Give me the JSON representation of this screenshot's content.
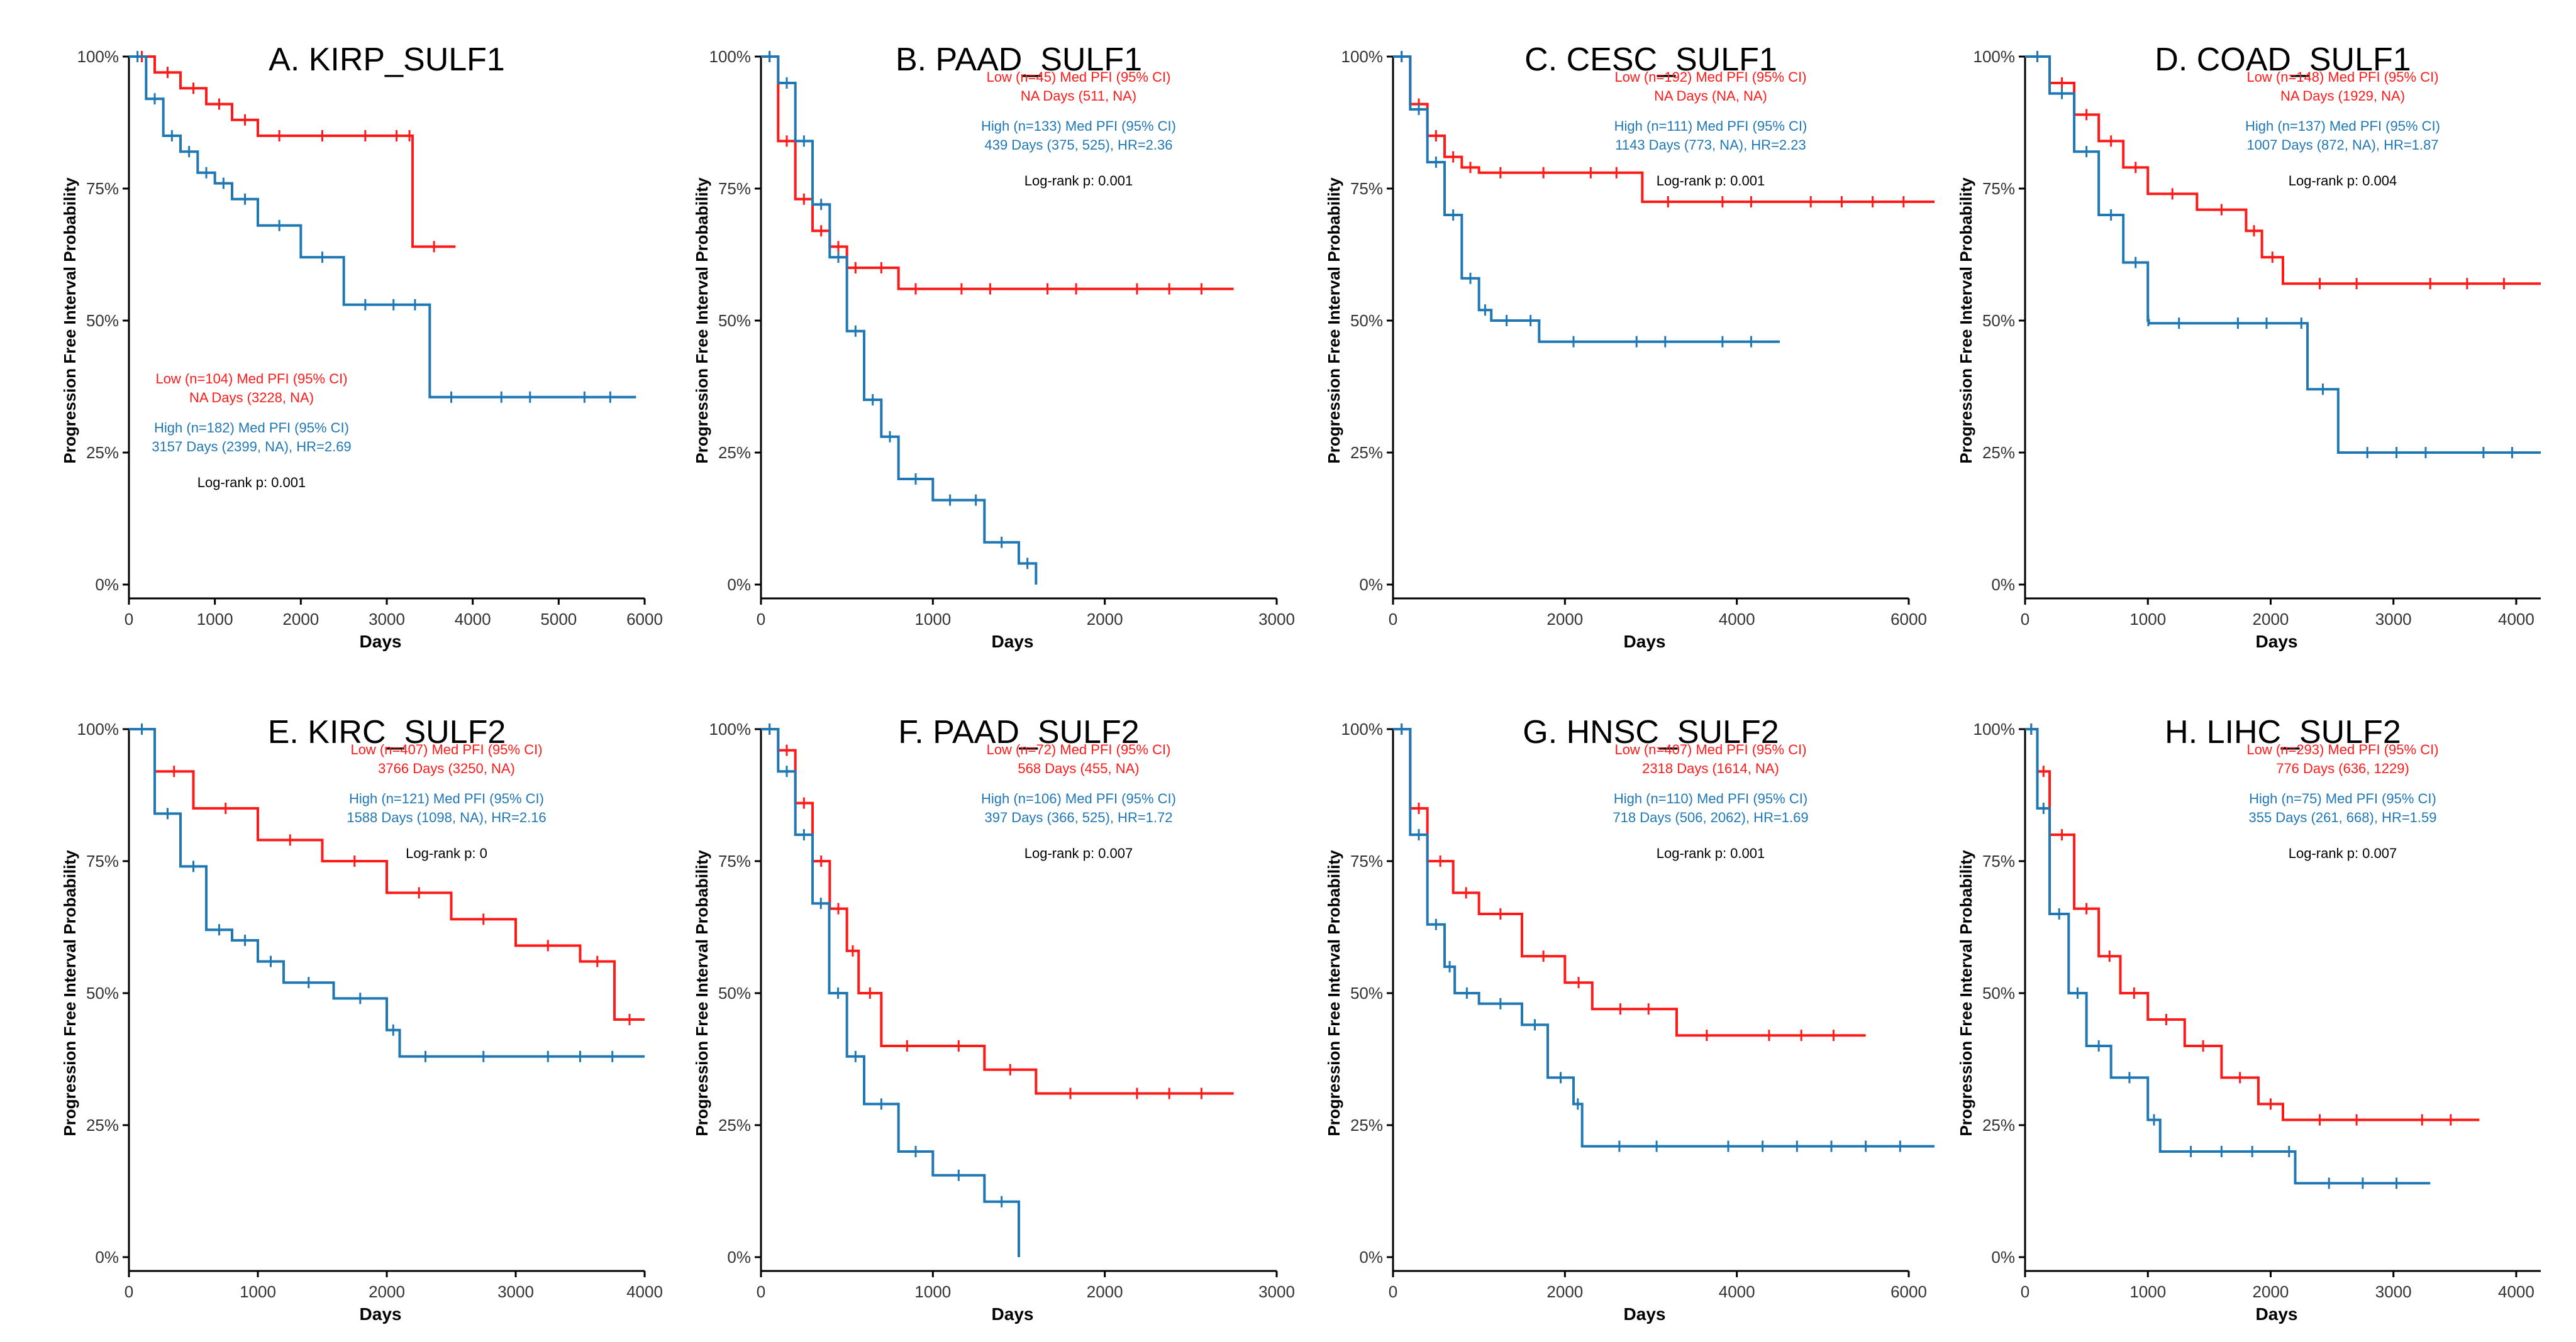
{
  "figure": {
    "colors": {
      "low": "#ff1a1a",
      "high": "#1f78b4",
      "axis": "#000000",
      "text": "#000000"
    },
    "axis_labels": {
      "x": "Days",
      "y": "Progression Free Interval Probability"
    },
    "y_ticks": [
      "0%",
      "25%",
      "50%",
      "75%",
      "100%"
    ]
  },
  "chart_data": [
    {
      "type": "line",
      "title": "A. KIRP_SULF1",
      "xlabel": "Days",
      "ylabel": "Progression Free Interval Probability",
      "xlim": [
        0,
        6000
      ],
      "ylim": [
        0,
        1
      ],
      "x_ticks": [
        0,
        1000,
        2000,
        3000,
        4000,
        5000,
        6000
      ],
      "low_label": "Low (n=104) Med PFI (95% CI)",
      "low_days": "NA Days (3228, NA)",
      "high_label": "High (n=182) Med PFI (95% CI)",
      "high_days": "3157 Days (2399, NA), HR=2.69",
      "logrank": "Log-rank p: 0.001",
      "series": [
        {
          "name": "Low",
          "x": [
            0,
            300,
            600,
            900,
            1200,
            1500,
            2000,
            2500,
            3000,
            3228,
            3300,
            3800
          ],
          "values": [
            1.0,
            0.97,
            0.94,
            0.91,
            0.88,
            0.85,
            0.85,
            0.85,
            0.85,
            0.85,
            0.64,
            0.64
          ]
        },
        {
          "name": "High",
          "x": [
            0,
            200,
            400,
            600,
            800,
            1000,
            1200,
            1500,
            2000,
            2500,
            3000,
            3157,
            3500,
            4000,
            5000,
            5900
          ],
          "values": [
            1.0,
            0.92,
            0.85,
            0.82,
            0.78,
            0.76,
            0.73,
            0.68,
            0.62,
            0.53,
            0.53,
            0.53,
            0.355,
            0.355,
            0.355,
            0.355
          ]
        }
      ]
    },
    {
      "type": "line",
      "title": "B. PAAD_SULF1",
      "xlabel": "Days",
      "ylabel": "Progression Free Interval Probability",
      "xlim": [
        0,
        3000
      ],
      "ylim": [
        0,
        1
      ],
      "x_ticks": [
        0,
        1000,
        2000,
        3000
      ],
      "low_label": "Low (n=45) Med PFI (95% CI)",
      "low_days": "NA Days (511, NA)",
      "high_label": "High (n=133) Med PFI (95% CI)",
      "high_days": "439 Days (375, 525), HR=2.36",
      "logrank": "Log-rank p: 0.001",
      "series": [
        {
          "name": "Low",
          "x": [
            0,
            100,
            200,
            300,
            400,
            500,
            600,
            800,
            1000,
            1500,
            2000,
            2750
          ],
          "values": [
            1.0,
            0.84,
            0.73,
            0.67,
            0.64,
            0.6,
            0.6,
            0.56,
            0.56,
            0.56,
            0.56,
            0.56
          ]
        },
        {
          "name": "High",
          "x": [
            0,
            100,
            200,
            300,
            400,
            500,
            600,
            700,
            800,
            1000,
            1200,
            1300,
            1500,
            1600
          ],
          "values": [
            1.0,
            0.95,
            0.84,
            0.72,
            0.62,
            0.48,
            0.35,
            0.28,
            0.2,
            0.16,
            0.16,
            0.08,
            0.04,
            0.0
          ]
        }
      ]
    },
    {
      "type": "line",
      "title": "C. CESC_SULF1",
      "xlabel": "Days",
      "ylabel": "Progression Free Interval Probability",
      "xlim": [
        0,
        6000
      ],
      "ylim": [
        0,
        1
      ],
      "x_ticks": [
        0,
        2000,
        4000,
        6000
      ],
      "low_label": "Low (n=192) Med PFI (95% CI)",
      "low_days": "NA Days (NA, NA)",
      "high_label": "High (n=111) Med PFI (95% CI)",
      "high_days": "1143 Days (773, NA), HR=2.23",
      "logrank": "Log-rank p: 0.001",
      "series": [
        {
          "name": "Low",
          "x": [
            0,
            200,
            400,
            600,
            800,
            1000,
            1500,
            2000,
            2900,
            3500,
            4500,
            6300
          ],
          "values": [
            1.0,
            0.91,
            0.85,
            0.81,
            0.79,
            0.78,
            0.78,
            0.78,
            0.725,
            0.725,
            0.725,
            0.725
          ]
        },
        {
          "name": "High",
          "x": [
            0,
            200,
            400,
            600,
            800,
            1000,
            1143,
            1500,
            1700,
            2500,
            3500,
            4500
          ],
          "values": [
            1.0,
            0.9,
            0.8,
            0.7,
            0.58,
            0.52,
            0.5,
            0.5,
            0.46,
            0.46,
            0.46,
            0.46
          ]
        }
      ]
    },
    {
      "type": "line",
      "title": "D. COAD_SULF1",
      "xlabel": "Days",
      "ylabel": "Progression Free Interval Probability",
      "xlim": [
        0,
        4200
      ],
      "ylim": [
        0,
        1
      ],
      "x_ticks": [
        0,
        1000,
        2000,
        3000,
        4000
      ],
      "low_label": "Low (n=148) Med PFI (95% CI)",
      "low_days": "NA Days (1929, NA)",
      "high_label": "High (n=137) Med PFI (95% CI)",
      "high_days": "1007 Days (872, NA), HR=1.87",
      "logrank": "Log-rank p: 0.004",
      "series": [
        {
          "name": "Low",
          "x": [
            0,
            200,
            400,
            600,
            800,
            1000,
            1400,
            1800,
            1929,
            2100,
            3000,
            4200
          ],
          "values": [
            1.0,
            0.95,
            0.89,
            0.84,
            0.79,
            0.74,
            0.71,
            0.67,
            0.62,
            0.57,
            0.57,
            0.57
          ]
        },
        {
          "name": "High",
          "x": [
            0,
            200,
            400,
            600,
            800,
            1000,
            1007,
            1500,
            2200,
            2300,
            2550,
            3500,
            4200
          ],
          "values": [
            1.0,
            0.93,
            0.82,
            0.7,
            0.61,
            0.5,
            0.495,
            0.495,
            0.495,
            0.37,
            0.25,
            0.25,
            0.25
          ]
        }
      ]
    },
    {
      "type": "line",
      "title": "E. KIRC_SULF2",
      "xlabel": "Days",
      "ylabel": "Progression Free Interval Probability",
      "xlim": [
        0,
        4000
      ],
      "ylim": [
        0,
        1
      ],
      "x_ticks": [
        0,
        1000,
        2000,
        3000,
        4000
      ],
      "low_label": "Low (n=407) Med PFI (95% CI)",
      "low_days": "3766 Days (3250, NA)",
      "high_label": "High (n=121) Med PFI (95% CI)",
      "high_days": "1588 Days (1098, NA), HR=2.16",
      "logrank": "Log-rank p: 0",
      "series": [
        {
          "name": "Low",
          "x": [
            0,
            200,
            500,
            1000,
            1500,
            2000,
            2500,
            3000,
            3500,
            3766,
            4000
          ],
          "values": [
            1.0,
            0.92,
            0.85,
            0.79,
            0.75,
            0.69,
            0.64,
            0.59,
            0.56,
            0.45,
            0.45
          ]
        },
        {
          "name": "High",
          "x": [
            0,
            200,
            400,
            600,
            800,
            1000,
            1200,
            1588,
            2000,
            2100,
            2500,
            3000,
            4000
          ],
          "values": [
            1.0,
            0.84,
            0.74,
            0.62,
            0.6,
            0.56,
            0.52,
            0.49,
            0.43,
            0.38,
            0.38,
            0.38,
            0.38
          ]
        }
      ]
    },
    {
      "type": "line",
      "title": "F. PAAD_SULF2",
      "xlabel": "Days",
      "ylabel": "Progression Free Interval Probability",
      "xlim": [
        0,
        3000
      ],
      "ylim": [
        0,
        1
      ],
      "x_ticks": [
        0,
        1000,
        2000,
        3000
      ],
      "low_label": "Low (n=72) Med PFI (95% CI)",
      "low_days": "568 Days (455, NA)",
      "high_label": "High (n=106) Med PFI (95% CI)",
      "high_days": "397 Days (366, 525), HR=1.72",
      "logrank": "Log-rank p: 0.007",
      "series": [
        {
          "name": "Low",
          "x": [
            0,
            100,
            200,
            300,
            400,
            500,
            568,
            700,
            1000,
            1300,
            1600,
            2000,
            2750
          ],
          "values": [
            1.0,
            0.96,
            0.86,
            0.75,
            0.66,
            0.58,
            0.5,
            0.4,
            0.4,
            0.355,
            0.31,
            0.31,
            0.31
          ]
        },
        {
          "name": "High",
          "x": [
            0,
            100,
            200,
            300,
            397,
            500,
            600,
            800,
            1000,
            1300,
            1500
          ],
          "values": [
            1.0,
            0.92,
            0.8,
            0.67,
            0.5,
            0.38,
            0.29,
            0.2,
            0.155,
            0.105,
            0.0
          ]
        }
      ]
    },
    {
      "type": "line",
      "title": "G. HNSC_SULF2",
      "xlabel": "Days",
      "ylabel": "Progression Free Interval Probability",
      "xlim": [
        0,
        6000
      ],
      "ylim": [
        0,
        1
      ],
      "x_ticks": [
        0,
        2000,
        4000,
        6000
      ],
      "low_label": "Low (n=407) Med PFI (95% CI)",
      "low_days": "2318 Days (1614, NA)",
      "high_label": "High (n=110) Med PFI (95% CI)",
      "high_days": "718 Days (506, 2062), HR=1.69",
      "logrank": "Log-rank p: 0.001",
      "series": [
        {
          "name": "Low",
          "x": [
            0,
            200,
            400,
            700,
            1000,
            1500,
            2000,
            2318,
            3300,
            4000,
            5500
          ],
          "values": [
            1.0,
            0.85,
            0.75,
            0.69,
            0.65,
            0.57,
            0.52,
            0.47,
            0.42,
            0.42,
            0.42
          ]
        },
        {
          "name": "High",
          "x": [
            0,
            200,
            400,
            600,
            718,
            1000,
            1500,
            1800,
            2100,
            2200,
            3500,
            6300
          ],
          "values": [
            1.0,
            0.8,
            0.63,
            0.55,
            0.5,
            0.48,
            0.44,
            0.34,
            0.29,
            0.21,
            0.21,
            0.21
          ]
        }
      ]
    },
    {
      "type": "line",
      "title": "H. LIHC_SULF2",
      "xlabel": "Days",
      "ylabel": "Progression Free Interval Probability",
      "xlim": [
        0,
        4200
      ],
      "ylim": [
        0,
        1
      ],
      "x_ticks": [
        0,
        1000,
        2000,
        3000,
        4000
      ],
      "low_label": "Low (n=293) Med PFI (95% CI)",
      "low_days": "776 Days (636, 1229)",
      "high_label": "High (n=75) Med PFI (95% CI)",
      "high_days": "355 Days (261, 668), HR=1.59",
      "logrank": "Log-rank p: 0.007",
      "series": [
        {
          "name": "Low",
          "x": [
            0,
            100,
            200,
            400,
            600,
            776,
            1000,
            1300,
            1600,
            1900,
            2100,
            3000,
            3700
          ],
          "values": [
            1.0,
            0.92,
            0.8,
            0.66,
            0.57,
            0.5,
            0.45,
            0.4,
            0.34,
            0.29,
            0.26,
            0.26,
            0.26
          ]
        },
        {
          "name": "High",
          "x": [
            0,
            100,
            200,
            355,
            500,
            700,
            1000,
            1100,
            2100,
            2200,
            3300
          ],
          "values": [
            1.0,
            0.85,
            0.65,
            0.5,
            0.4,
            0.34,
            0.26,
            0.2,
            0.2,
            0.14,
            0.14
          ]
        }
      ]
    }
  ]
}
